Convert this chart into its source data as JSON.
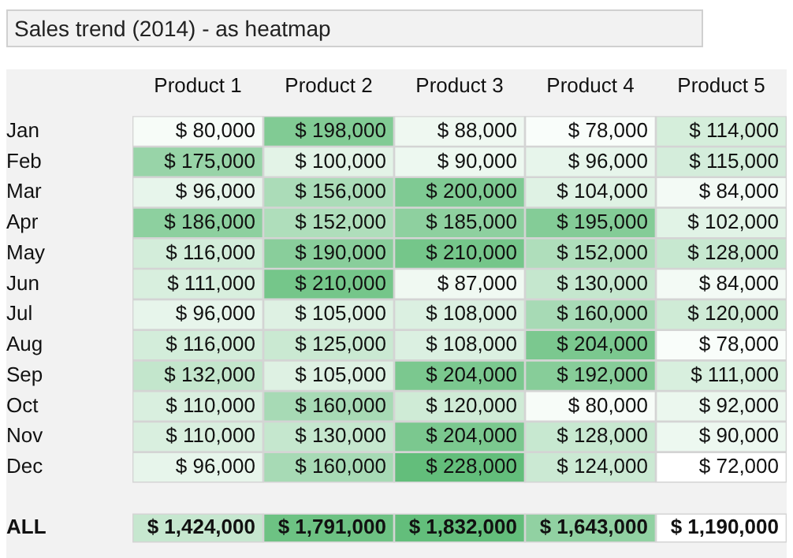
{
  "chart_data": [
    {
      "type": "heatmap",
      "title": "Sales trend (2014) - as heatmap",
      "categories": [
        "Product 1",
        "Product 2",
        "Product 3",
        "Product 4",
        "Product 5"
      ],
      "y_categories": [
        "Jan",
        "Feb",
        "Mar",
        "Apr",
        "May",
        "Jun",
        "Jul",
        "Aug",
        "Sep",
        "Oct",
        "Nov",
        "Dec"
      ],
      "cells": [
        [
          80000,
          198000,
          88000,
          78000,
          114000
        ],
        [
          175000,
          100000,
          90000,
          96000,
          115000
        ],
        [
          96000,
          156000,
          200000,
          104000,
          84000
        ],
        [
          186000,
          152000,
          185000,
          195000,
          102000
        ],
        [
          116000,
          190000,
          210000,
          152000,
          128000
        ],
        [
          111000,
          210000,
          87000,
          130000,
          84000
        ],
        [
          96000,
          105000,
          108000,
          160000,
          120000
        ],
        [
          116000,
          125000,
          108000,
          204000,
          78000
        ],
        [
          132000,
          105000,
          204000,
          192000,
          111000
        ],
        [
          110000,
          160000,
          120000,
          80000,
          92000
        ],
        [
          110000,
          130000,
          204000,
          128000,
          90000
        ],
        [
          96000,
          160000,
          228000,
          124000,
          72000
        ]
      ],
      "cell_labels": [
        [
          "$ 80,000",
          "$ 198,000",
          "$ 88,000",
          "$ 78,000",
          "$ 114,000"
        ],
        [
          "$ 175,000",
          "$ 100,000",
          "$ 90,000",
          "$ 96,000",
          "$ 115,000"
        ],
        [
          "$ 96,000",
          "$ 156,000",
          "$ 200,000",
          "$ 104,000",
          "$ 84,000"
        ],
        [
          "$ 186,000",
          "$ 152,000",
          "$ 185,000",
          "$ 195,000",
          "$ 102,000"
        ],
        [
          "$ 116,000",
          "$ 190,000",
          "$ 210,000",
          "$ 152,000",
          "$ 128,000"
        ],
        [
          "$ 111,000",
          "$ 210,000",
          "$ 87,000",
          "$ 130,000",
          "$ 84,000"
        ],
        [
          "$ 96,000",
          "$ 105,000",
          "$ 108,000",
          "$ 160,000",
          "$ 120,000"
        ],
        [
          "$ 116,000",
          "$ 125,000",
          "$ 108,000",
          "$ 204,000",
          "$ 78,000"
        ],
        [
          "$ 132,000",
          "$ 105,000",
          "$ 204,000",
          "$ 192,000",
          "$ 111,000"
        ],
        [
          "$ 110,000",
          "$ 160,000",
          "$ 120,000",
          "$ 80,000",
          "$ 92,000"
        ],
        [
          "$ 110,000",
          "$ 130,000",
          "$ 204,000",
          "$ 128,000",
          "$ 90,000"
        ],
        [
          "$ 96,000",
          "$ 160,000",
          "$ 228,000",
          "$ 124,000",
          "$ 72,000"
        ]
      ]
    },
    {
      "type": "heatmap",
      "categories": [
        null,
        null,
        null,
        null,
        null
      ],
      "y_categories": [
        "ALL"
      ],
      "tick_labels": "y",
      "cells": [
        [
          1424000,
          1791000,
          1832000,
          1643000,
          1190000
        ]
      ],
      "cell_labels": [
        [
          "$ 1,424,000",
          "$ 1,791,000",
          "$ 1,832,000",
          "$ 1,643,000",
          "$ 1,190,000"
        ]
      ]
    }
  ]
}
